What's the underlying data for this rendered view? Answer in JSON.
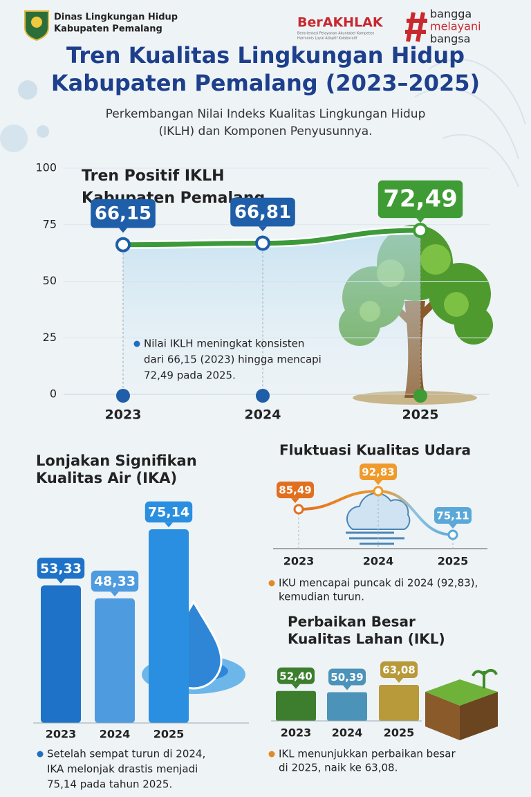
{
  "header": {
    "org_name": [
      "Dinas Lingkungan Hidup",
      "Kabupaten Pemalang"
    ],
    "berakhlak": "BerAKHLAK",
    "berakhlak_tagline": [
      "Berorientasi Pelayanan Akuntabel Kompeten",
      "Harmonis Loyal Adaptif Kolaboratif"
    ],
    "slogan": [
      "bangga",
      "melayani",
      "bangsa"
    ],
    "title": [
      "Tren Kualitas Lingkungan Hidup",
      "Kabupaten Pemalang (2023–2025)"
    ],
    "subtitle": [
      "Perkembangan Nilai Indeks Kualitas Lingkungan Hidup",
      "(IKLH) dan Komponen Penyusunnya."
    ]
  },
  "chart_data": [
    {
      "type": "line",
      "title": [
        "Tren Positif IKLH",
        "Kabupaten Pemalang"
      ],
      "categories": [
        "2023",
        "2024",
        "2025"
      ],
      "values": [
        66.15,
        66.81,
        72.49
      ],
      "value_labels": [
        "66,15",
        "66,81",
        "72,49"
      ],
      "colors": [
        "#1f5ea8",
        "#1f5ea8",
        "#3f9b34"
      ],
      "ylim": [
        0,
        100
      ],
      "yticks": [
        0,
        25,
        50,
        75,
        100
      ],
      "grid": true,
      "annotation": [
        "Nilai IKLH meningkat konsisten",
        "dari 66,15 (2023) hingga mencapi",
        "72,49 pada 2025."
      ]
    },
    {
      "type": "bar",
      "title": [
        "Lonjakan Signifikan",
        "Kualitas Air (IKA)"
      ],
      "categories": [
        "2023",
        "2024",
        "2025"
      ],
      "values": [
        53.33,
        48.33,
        75.14
      ],
      "value_labels": [
        "53,33",
        "48,33",
        "75,14"
      ],
      "colors": [
        "#1e73c8",
        "#4f9be0",
        "#2a8fe0"
      ],
      "annotation": [
        "Setelah sempat turun di 2024,",
        "IKA melonjak drastis menjadi",
        "75,14 pada tahun 2025."
      ]
    },
    {
      "type": "line",
      "title": [
        "Fluktuasi Kualitas Udara"
      ],
      "categories": [
        "2023",
        "2024",
        "2025"
      ],
      "values": [
        85.49,
        92.83,
        75.11
      ],
      "value_labels": [
        "85,49",
        "92,83",
        "75,11"
      ],
      "colors": [
        "#e0701f",
        "#ef9a2a",
        "#5aa8d8"
      ],
      "annotation": [
        "IKU mencapai puncak di 2024 (92,83),",
        "kemudian turun."
      ]
    },
    {
      "type": "bar",
      "title": [
        "Perbaikan Besar",
        "Kualitas Lahan (IKL)"
      ],
      "categories": [
        "2023",
        "2024",
        "2025"
      ],
      "values": [
        52.4,
        50.39,
        63.08
      ],
      "value_labels": [
        "52,40",
        "50,39",
        "63,08"
      ],
      "colors": [
        "#3d7e2e",
        "#4b93b8",
        "#b89a3a"
      ],
      "annotation": [
        "IKL menunjukkan perbaikan besar",
        "di 2025, naik ke 63,08."
      ]
    }
  ]
}
